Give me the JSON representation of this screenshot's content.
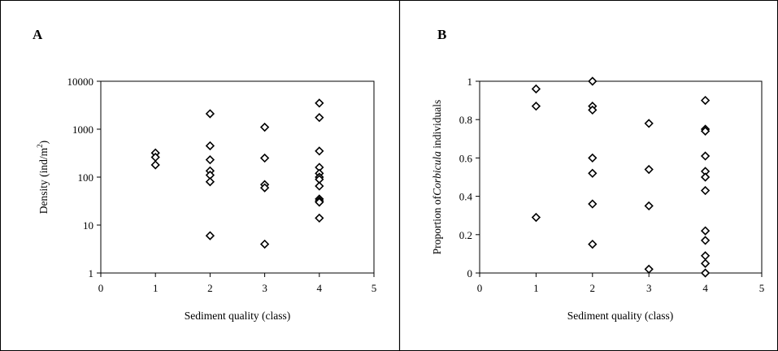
{
  "chart_data": [
    {
      "panel_label": "A",
      "type": "scatter",
      "xlabel": "Sediment quality (class)",
      "ylabel": "Density (ind/m",
      "ylabel_sup": "2",
      "ylabel_end": ")",
      "xlim": [
        0,
        5
      ],
      "ylim": [
        1,
        10000
      ],
      "yscale": "log",
      "xticks": [
        0,
        1,
        2,
        3,
        4,
        5
      ],
      "yticks": [
        1,
        10,
        100,
        1000,
        10000
      ],
      "marker": "open-diamond",
      "grid": false,
      "x": [
        1,
        1,
        1,
        2,
        2,
        2,
        2,
        2,
        2,
        2,
        3,
        3,
        3,
        3,
        3,
        4,
        4,
        4,
        4,
        4,
        4,
        4,
        4,
        4,
        4,
        4,
        4
      ],
      "y": [
        320,
        260,
        180,
        2100,
        450,
        230,
        135,
        110,
        80,
        6,
        1100,
        250,
        70,
        60,
        4,
        3500,
        1750,
        350,
        160,
        120,
        100,
        90,
        65,
        35,
        32,
        30,
        14
      ]
    },
    {
      "panel_label": "B",
      "type": "scatter",
      "xlabel": "Sediment quality (class)",
      "ylabel_prefix": "Proportion of",
      "ylabel_italic": "Corbicula",
      "ylabel_suffix": " individuals",
      "xlim": [
        0,
        5
      ],
      "ylim": [
        0,
        1
      ],
      "yscale": "linear",
      "xticks": [
        0,
        1,
        2,
        3,
        4,
        5
      ],
      "yticks": [
        0,
        0.2,
        0.4,
        0.6,
        0.8,
        1
      ],
      "marker": "open-diamond",
      "grid": false,
      "x": [
        1,
        1,
        1,
        2,
        2,
        2,
        2,
        2,
        2,
        2,
        3,
        3,
        3,
        3,
        4,
        4,
        4,
        4,
        4,
        4,
        4,
        4,
        4,
        4,
        4,
        4
      ],
      "y": [
        0.96,
        0.87,
        0.29,
        1.0,
        0.87,
        0.85,
        0.6,
        0.52,
        0.36,
        0.15,
        0.78,
        0.54,
        0.35,
        0.02,
        0.9,
        0.75,
        0.74,
        0.61,
        0.53,
        0.5,
        0.43,
        0.22,
        0.17,
        0.09,
        0.05,
        0.0
      ]
    }
  ]
}
